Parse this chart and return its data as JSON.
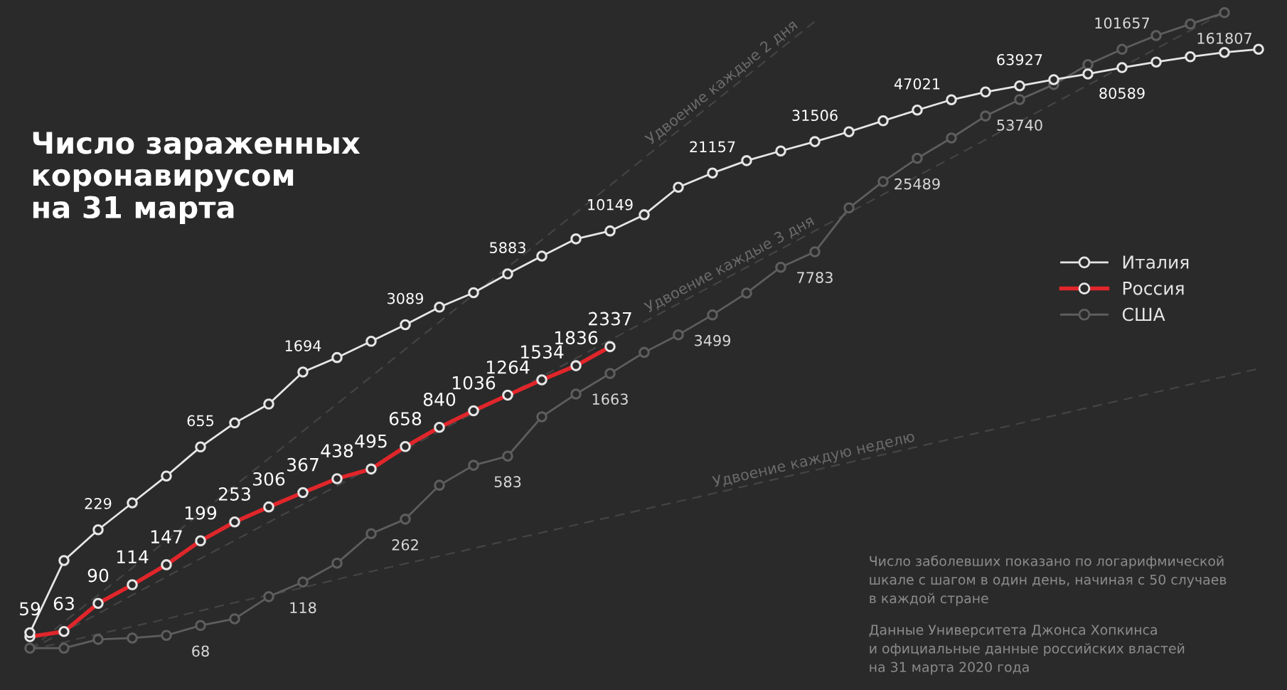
{
  "chart_data": {
    "type": "line",
    "title": "Число зараженных\nкоронавирусом\nна 31 марта",
    "categories": [
      null,
      null,
      null,
      null,
      null,
      null,
      null,
      null,
      null,
      null,
      null,
      null,
      null,
      null,
      null,
      null,
      null,
      null,
      null,
      null,
      null,
      null,
      null,
      null,
      null,
      null,
      null,
      null,
      null,
      null,
      null,
      null,
      null,
      null,
      null,
      null,
      null
    ],
    "ylim": [
      30,
      190000
    ],
    "log": true,
    "tick_labels": false,
    "grid": false,
    "legend": "right",
    "marker": "circle",
    "series": [
      {
        "name": "Италия",
        "color": "#e6e6e6",
        "values": [
          62,
          155,
          229,
          322,
          453,
          655,
          888,
          1128,
          1694,
          2036,
          2502,
          3089,
          3858,
          4636,
          5883,
          7375,
          9172,
          10149,
          12462,
          17660,
          21157,
          24747,
          27980,
          31506,
          35713,
          41035,
          47021,
          53578,
          59138,
          63927,
          69176,
          74386,
          80589,
          86498,
          92472,
          97689,
          101739
        ],
        "value_labels": [
          null,
          null,
          "229",
          null,
          null,
          "655",
          null,
          null,
          "1694",
          null,
          null,
          "3089",
          null,
          null,
          "5883",
          null,
          null,
          "10149",
          null,
          null,
          "21157",
          null,
          null,
          "31506",
          null,
          null,
          "47021",
          null,
          null,
          "63927",
          null,
          null,
          "80589",
          null,
          null,
          null,
          null
        ]
      },
      {
        "name": "Россия",
        "color": "#e0262b",
        "values": [
          59,
          63,
          90,
          114,
          147,
          199,
          253,
          306,
          367,
          438,
          495,
          658,
          840,
          1036,
          1264,
          1534,
          1836,
          2337,
          null,
          null,
          null,
          null,
          null,
          null,
          null,
          null,
          null,
          null,
          null,
          null,
          null,
          null,
          null,
          null,
          null,
          null,
          null
        ],
        "value_labels": [
          "59",
          "63",
          "90",
          "114",
          "147",
          "199",
          "253",
          "306",
          "367",
          "438",
          "495",
          "658",
          "840",
          "1036",
          "1264",
          "1534",
          "1836",
          "2337",
          null,
          null,
          null,
          null,
          null,
          null,
          null,
          null,
          null,
          null,
          null,
          null,
          null,
          null,
          null,
          null,
          null,
          null,
          null
        ]
      },
      {
        "name": "США",
        "color": "#5e5e5e",
        "values": [
          51,
          51,
          57,
          58,
          60,
          68,
          74,
          98,
          118,
          150,
          218,
          262,
          403,
          519,
          583,
          960,
          1281,
          1663,
          2174,
          2717,
          3499,
          4617,
          6400,
          7783,
          13590,
          19000,
          25489,
          33000,
          43600,
          53740,
          65000,
          83700,
          101657,
          121000,
          140000,
          161807,
          null
        ],
        "value_labels": [
          null,
          null,
          null,
          null,
          null,
          "68",
          null,
          null,
          "118",
          null,
          null,
          "262",
          null,
          null,
          "583",
          null,
          null,
          "1663",
          null,
          null,
          "3499",
          null,
          null,
          "7783",
          null,
          null,
          "25489",
          null,
          null,
          "53740",
          null,
          null,
          "101657",
          null,
          null,
          "161807",
          null
        ]
      },
      {
        "type": "line",
        "color": "#444444",
        "line_style": "dashed",
        "marker": "none",
        "values": [
          50,
          71,
          100,
          141,
          200,
          283,
          400,
          566,
          800,
          1131,
          1600,
          2263,
          3200,
          4525,
          6400,
          9051,
          12800,
          18102,
          25600,
          36204,
          51200,
          72408,
          102400,
          144815,
          null,
          null,
          null,
          null,
          null,
          null,
          null,
          null,
          null,
          null,
          null,
          null,
          null
        ]
      },
      {
        "type": "line",
        "color": "#444444",
        "line_style": "dashed",
        "marker": "none",
        "values": [
          50,
          63,
          79,
          100,
          126,
          159,
          200,
          252,
          317,
          400,
          504,
          635,
          800,
          1008,
          1270,
          1600,
          2016,
          2540,
          3200,
          4032,
          5080,
          6400,
          8063,
          10159,
          12800,
          16127,
          20319,
          25600,
          32254,
          40637,
          51200,
          64508,
          81275,
          102400,
          129016,
          162550,
          null
        ]
      },
      {
        "type": "line",
        "color": "#444444",
        "line_style": "dashed",
        "marker": "none",
        "values": [
          50,
          55,
          61,
          67,
          74,
          82,
          91,
          100,
          110,
          122,
          135,
          149,
          164,
          181,
          200,
          221,
          244,
          269,
          297,
          328,
          362,
          400,
          442,
          488,
          538,
          594,
          656,
          725,
          800,
          883,
          975,
          1077,
          1189,
          1313,
          1449,
          1600,
          1767
        ]
      }
    ],
    "annotations": [
      "Удвоение каждые 2 дня",
      "Удвоение каждые 3 дня",
      "Удвоение каждую неделю",
      "Число заболевших показано по логарифмической\nшкале с шагом в один день, начиная с 50 случаев\nв каждой стране",
      "Данные Университета Джонса Хопкинса\nи официальные данные российских властей\nна 31 марта 2020 года"
    ]
  }
}
